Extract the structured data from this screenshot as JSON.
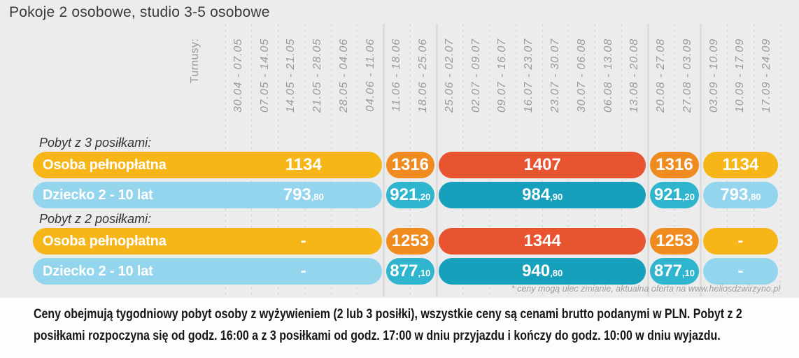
{
  "title": "Pokoje 2 osobowe, studio 3-5 osobowe",
  "header": {
    "turnusy_label": "Turnusy:",
    "periods": [
      "30.04 - 07.05",
      "07.05 - 14.05",
      "14.05 - 21.05",
      "21.05 - 28.05",
      "28.05 - 04.06",
      "04.06 - 11.06",
      "11.06 - 18.06",
      "18.06 - 25.06",
      "25.06 - 02.07",
      "02.07 - 09.07",
      "09.07 - 16.07",
      "16.07 - 23.07",
      "23.07 - 30.07",
      "30.07 - 06.08",
      "06.08 - 13.08",
      "13.08 - 20.08",
      "20.08 - 27.08",
      "27.08 - 03.09",
      "03.09 - 10.09",
      "10.09 - 17.09",
      "17.09 - 24.09"
    ]
  },
  "layout": {
    "num_columns": 21,
    "solid_boundaries": [
      6,
      8,
      16,
      18
    ]
  },
  "colors": {
    "yellow": "#f6b618",
    "orange": "#f08c1f",
    "red": "#e85330",
    "blue_light": "#94d5ee",
    "teal": "#30b5ce",
    "teal_dark": "#17a0bc"
  },
  "sections": [
    {
      "label": "Pobyt z 3 posiłkami:",
      "rows": [
        {
          "label": "Osoba pełnopłatna",
          "cells": [
            {
              "value": "1134",
              "decimal": "",
              "span": 6,
              "color": "yellow"
            },
            {
              "value": "1316",
              "decimal": "",
              "span": 2,
              "color": "orange"
            },
            {
              "value": "1407",
              "decimal": "",
              "span": 8,
              "color": "red"
            },
            {
              "value": "1316",
              "decimal": "",
              "span": 2,
              "color": "orange"
            },
            {
              "value": "1134",
              "decimal": "",
              "span": 3,
              "color": "yellow"
            }
          ]
        },
        {
          "label": "Dziecko 2 - 10 lat",
          "cells": [
            {
              "value": "793",
              "decimal": "80",
              "span": 6,
              "color": "blue_light"
            },
            {
              "value": "921",
              "decimal": "20",
              "span": 2,
              "color": "teal"
            },
            {
              "value": "984",
              "decimal": "90",
              "span": 8,
              "color": "teal_dark"
            },
            {
              "value": "921",
              "decimal": "20",
              "span": 2,
              "color": "teal"
            },
            {
              "value": "793",
              "decimal": "80",
              "span": 3,
              "color": "blue_light"
            }
          ]
        }
      ]
    },
    {
      "label": "Pobyt z 2 posiłkami:",
      "rows": [
        {
          "label": "Osoba pełnopłatna",
          "cells": [
            {
              "value": "-",
              "decimal": "",
              "span": 6,
              "color": "yellow"
            },
            {
              "value": "1253",
              "decimal": "",
              "span": 2,
              "color": "orange"
            },
            {
              "value": "1344",
              "decimal": "",
              "span": 8,
              "color": "red"
            },
            {
              "value": "1253",
              "decimal": "",
              "span": 2,
              "color": "orange"
            },
            {
              "value": "-",
              "decimal": "",
              "span": 3,
              "color": "yellow"
            }
          ]
        },
        {
          "label": "Dziecko 2 - 10 lat",
          "cells": [
            {
              "value": "-",
              "decimal": "",
              "span": 6,
              "color": "blue_light"
            },
            {
              "value": "877",
              "decimal": "10",
              "span": 2,
              "color": "teal"
            },
            {
              "value": "940",
              "decimal": "80",
              "span": 8,
              "color": "teal_dark"
            },
            {
              "value": "877",
              "decimal": "10",
              "span": 2,
              "color": "teal"
            },
            {
              "value": "-",
              "decimal": "",
              "span": 3,
              "color": "blue_light"
            }
          ]
        }
      ]
    }
  ],
  "footnote": "* ceny mogą ulec zmianie, aktualna oferta na www.heliosdzwirzyno.pl",
  "bottom_text": "Ceny obejmują tygodniowy pobyt osoby z wyżywieniem (2 lub 3 posiłki), wszystkie ceny są cenami brutto podanymi w PLN. Pobyt z 2 posiłkami rozpoczyna się od godz. 16:00  a z 3 posiłkami od godz. 17:00 w dniu przyjazdu i kończy do godz. 10:00 w dniu wyjazdu."
}
